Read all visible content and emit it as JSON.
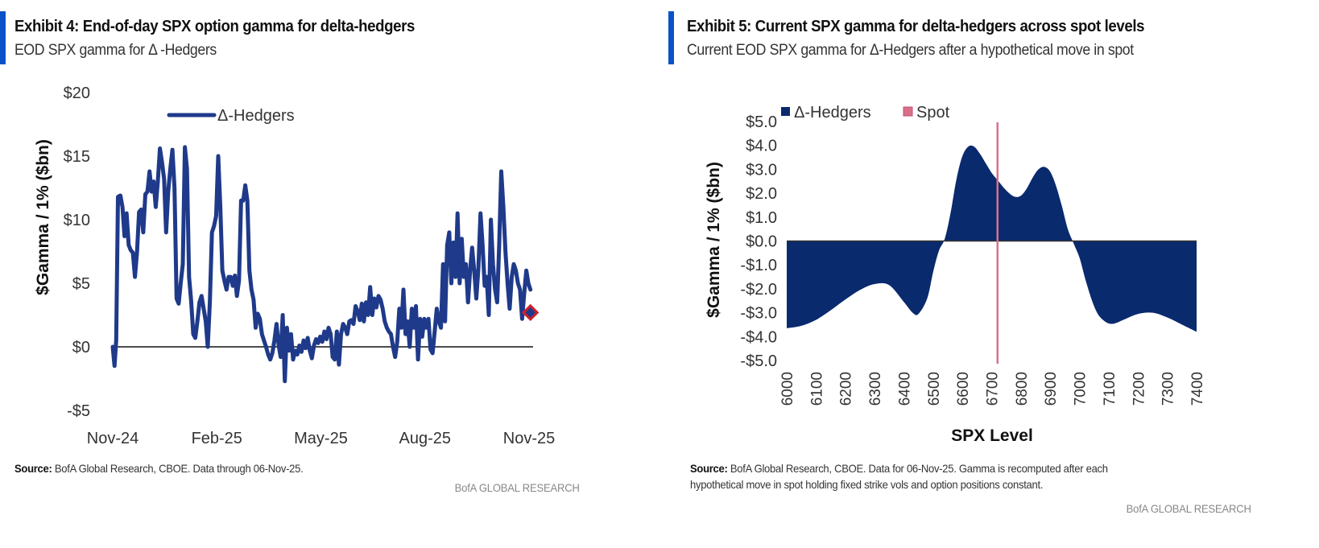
{
  "exhibit4": {
    "title": "Exhibit 4: End-of-day SPX option gamma for delta-hedgers",
    "subtitle": "EOD SPX gamma for  Δ -Hedgers",
    "source_label": "Source:",
    "source_text": " BofA Global Research, CBOE. Data through 06-Nov-25.",
    "brand": "BofA GLOBAL RESEARCH"
  },
  "exhibit5": {
    "title": "Exhibit 5: Current SPX gamma for delta-hedgers across spot levels",
    "subtitle": "Current EOD SPX gamma for Δ-Hedgers after a hypothetical move in spot",
    "source_label": "Source:",
    "source_line1": " BofA Global Research, CBOE. Data for 06-Nov-25. Gamma is recomputed after each",
    "source_line2": "hypothetical move in spot holding fixed strike vols and option positions constant.",
    "brand": "BofA GLOBAL RESEARCH"
  },
  "colors": {
    "series": "#1f3a8a",
    "area": "#0a2a6e",
    "spot": "#d9708a",
    "marker_fill": "#1f3a8a",
    "marker_edge": "#d0202a",
    "accent": "#0a52c7"
  },
  "chart_data": [
    {
      "type": "line",
      "title": "Exhibit 4: End-of-day SPX option gamma for delta-hedgers",
      "xlabel": "",
      "ylabel": "$Gamma / 1% ($bn)",
      "ylim": [
        -5,
        20
      ],
      "yticks": [
        -5,
        0,
        5,
        10,
        15,
        20
      ],
      "ytick_labels": [
        "-$5",
        "$0",
        "$5",
        "$10",
        "$15",
        "$20"
      ],
      "xtick_labels": [
        "Nov-24",
        "Feb-25",
        "May-25",
        "Aug-25",
        "Nov-25"
      ],
      "xlim_months": [
        0,
        12
      ],
      "legend": {
        "entries": [
          "Δ-Hedgers"
        ],
        "position": "top-center"
      },
      "grid": false,
      "last_point_marker": {
        "label": "06-Nov-25",
        "value": 2.7
      },
      "series": [
        {
          "name": "Δ-Hedgers",
          "x_months": [
            0.0,
            0.05,
            0.1,
            0.15,
            0.22,
            0.28,
            0.34,
            0.4,
            0.46,
            0.52,
            0.58,
            0.64,
            0.7,
            0.76,
            0.82,
            0.88,
            0.94,
            1.0,
            1.06,
            1.12,
            1.18,
            1.24,
            1.3,
            1.36,
            1.42,
            1.48,
            1.54,
            1.6,
            1.66,
            1.72,
            1.78,
            1.84,
            1.9,
            1.96,
            2.02,
            2.08,
            2.14,
            2.2,
            2.26,
            2.32,
            2.38,
            2.44,
            2.5,
            2.56,
            2.62,
            2.68,
            2.74,
            2.8,
            2.86,
            2.92,
            2.98,
            3.04,
            3.1,
            3.16,
            3.22,
            3.28,
            3.34,
            3.4,
            3.46,
            3.52,
            3.58,
            3.64,
            3.7,
            3.76,
            3.82,
            3.88,
            3.94,
            4.0,
            4.06,
            4.12,
            4.18,
            4.24,
            4.3,
            4.36,
            4.42,
            4.48,
            4.54,
            4.6,
            4.66,
            4.72,
            4.78,
            4.84,
            4.9,
            4.96,
            5.02,
            5.08,
            5.14,
            5.2,
            5.26,
            5.32,
            5.38,
            5.44,
            5.5,
            5.56,
            5.62,
            5.68,
            5.74,
            5.8,
            5.86,
            5.92,
            5.98,
            6.04,
            6.1,
            6.16,
            6.22,
            6.28,
            6.34,
            6.4,
            6.46,
            6.52,
            6.58,
            6.64,
            6.7,
            6.76,
            6.82,
            6.88,
            6.94,
            7.0,
            7.06,
            7.12,
            7.18,
            7.24,
            7.3,
            7.36,
            7.42,
            7.48,
            7.54,
            7.6,
            7.66,
            7.72,
            7.78,
            7.84,
            7.9,
            7.96,
            8.02,
            8.08,
            8.14,
            8.2,
            8.26,
            8.32,
            8.38,
            8.44,
            8.5,
            8.56,
            8.62,
            8.68,
            8.74,
            8.8,
            8.86,
            8.92,
            8.98,
            9.04,
            9.1,
            9.16,
            9.22,
            9.28,
            9.34,
            9.4,
            9.46,
            9.52,
            9.58,
            9.64,
            9.7,
            9.76,
            9.82,
            9.88,
            9.94,
            10.0,
            10.06,
            10.12,
            10.18,
            10.24,
            10.3,
            10.36,
            10.42,
            10.48,
            10.54,
            10.6,
            10.66,
            10.72,
            10.78,
            10.84,
            10.9,
            10.96,
            11.02,
            11.08,
            11.14,
            11.2,
            11.26,
            11.32,
            11.38,
            11.44,
            11.5,
            11.56,
            11.62,
            11.68,
            11.74,
            11.8,
            11.86,
            11.92,
            11.98,
            12.04
          ],
          "values": [
            0.0,
            -1.5,
            0.5,
            11.8,
            11.9,
            11.0,
            8.7,
            10.5,
            8.0,
            7.6,
            7.4,
            5.5,
            7.5,
            10.6,
            10.8,
            9.0,
            12.0,
            12.2,
            13.8,
            12.2,
            13.0,
            11.0,
            13.0,
            15.6,
            14.5,
            13.2,
            9.0,
            12.2,
            14.0,
            15.5,
            12.5,
            3.8,
            3.4,
            5.0,
            6.5,
            15.7,
            14.0,
            5.5,
            3.6,
            1.0,
            0.7,
            2.0,
            3.5,
            4.0,
            3.0,
            2.0,
            0.0,
            3.5,
            9.0,
            9.5,
            10.3,
            15.0,
            11.0,
            6.0,
            5.2,
            4.5,
            5.5,
            5.5,
            4.8,
            5.6,
            4.0,
            5.2,
            11.5,
            11.5,
            12.7,
            11.5,
            6.0,
            4.5,
            3.7,
            1.5,
            2.6,
            2.2,
            1.0,
            0.5,
            0.0,
            -0.6,
            -1.0,
            -0.5,
            0.5,
            1.8,
            0.2,
            -0.8,
            2.5,
            -2.7,
            1.5,
            -0.3,
            1.0,
            -1.0,
            -0.3,
            -0.6,
            0.1,
            -0.4,
            0.5,
            -0.1,
            0.7,
            -0.3,
            -0.9,
            0.1,
            0.6,
            0.3,
            0.8,
            0.4,
            1.2,
            0.6,
            1.5,
            1.0,
            -0.8,
            -1.0,
            1.2,
            -1.4,
            1.0,
            1.8,
            1.5,
            1.0,
            2.0,
            2.1,
            1.8,
            3.2,
            2.8,
            2.1,
            3.4,
            2.0,
            3.5,
            2.5,
            4.7,
            2.5,
            3.8,
            3.1,
            4.0,
            3.7,
            3.0,
            2.0,
            1.5,
            1.2,
            1.0,
            0.0,
            -0.8,
            0.4,
            3.0,
            1.5,
            4.5,
            1.0,
            2.0,
            0.0,
            3.0,
            1.5,
            3.2,
            -1.0,
            2.2,
            0.8,
            2.2,
            1.5,
            2.2,
            -0.2,
            -0.5,
            1.2,
            3.0,
            2.0,
            1.5,
            6.5,
            2.0,
            8.0,
            9.0,
            5.0,
            8.2,
            5.5,
            10.5,
            5.0,
            8.5,
            5.5,
            6.5,
            3.5,
            6.0,
            7.8,
            6.0,
            3.8,
            6.2,
            10.5,
            8.0,
            4.8,
            5.5,
            2.5,
            10.0,
            6.5,
            4.5,
            3.5,
            8.0,
            13.8,
            11.0,
            7.5,
            5.0,
            3.0,
            5.5,
            6.5,
            6.0,
            5.0,
            4.5,
            2.2,
            4.2,
            6.0,
            5.0,
            4.5,
            2.5,
            6.5,
            5.5,
            2.5,
            1.8,
            8.0,
            7.0,
            9.0,
            2.2,
            3.5,
            6.0,
            1.0,
            4.5,
            5.0,
            2.8,
            2.7
          ]
        }
      ]
    },
    {
      "type": "area",
      "title": "Exhibit 5: Current SPX gamma for delta-hedgers across spot levels",
      "xlabel": "SPX Level",
      "ylabel": "$Gamma / 1% ($bn)",
      "ylim": [
        -5,
        5
      ],
      "yticks": [
        -5,
        -4,
        -3,
        -2,
        -1,
        0,
        1,
        2,
        3,
        4,
        5
      ],
      "ytick_labels": [
        "-$5.0",
        "-$4.0",
        "-$3.0",
        "-$2.0",
        "-$1.0",
        "$0.0",
        "$1.0",
        "$2.0",
        "$3.0",
        "$4.0",
        "$5.0"
      ],
      "xlim": [
        6000,
        7400
      ],
      "xtick_labels": [
        "6000",
        "6100",
        "6200",
        "6300",
        "6400",
        "6500",
        "6600",
        "6700",
        "6800",
        "6900",
        "7000",
        "7100",
        "7200",
        "7300",
        "7400"
      ],
      "legend": {
        "entries": [
          "Δ-Hedgers",
          "Spot"
        ],
        "position": "top-left"
      },
      "grid": false,
      "spot": 6720,
      "series": [
        {
          "name": "Δ-Hedgers",
          "x": [
            6000,
            6050,
            6100,
            6150,
            6200,
            6250,
            6300,
            6350,
            6400,
            6430,
            6450,
            6480,
            6500,
            6520,
            6540,
            6560,
            6580,
            6600,
            6620,
            6640,
            6660,
            6680,
            6700,
            6720,
            6740,
            6760,
            6780,
            6800,
            6820,
            6840,
            6860,
            6880,
            6900,
            6920,
            6940,
            6960,
            6980,
            7000,
            7020,
            7040,
            7060,
            7080,
            7100,
            7120,
            7150,
            7200,
            7250,
            7300,
            7350,
            7400
          ],
          "values": [
            -3.65,
            -3.55,
            -3.3,
            -2.9,
            -2.45,
            -2.05,
            -1.8,
            -1.85,
            -2.55,
            -3.0,
            -3.05,
            -2.4,
            -1.3,
            -0.4,
            0.1,
            1.2,
            2.6,
            3.55,
            3.95,
            3.95,
            3.65,
            3.25,
            2.85,
            2.55,
            2.25,
            2.0,
            1.85,
            1.9,
            2.2,
            2.65,
            3.0,
            3.1,
            2.9,
            2.3,
            1.45,
            0.5,
            -0.1,
            -0.7,
            -1.6,
            -2.4,
            -3.0,
            -3.3,
            -3.45,
            -3.45,
            -3.3,
            -3.05,
            -3.0,
            -3.2,
            -3.5,
            -3.8
          ]
        }
      ]
    }
  ]
}
